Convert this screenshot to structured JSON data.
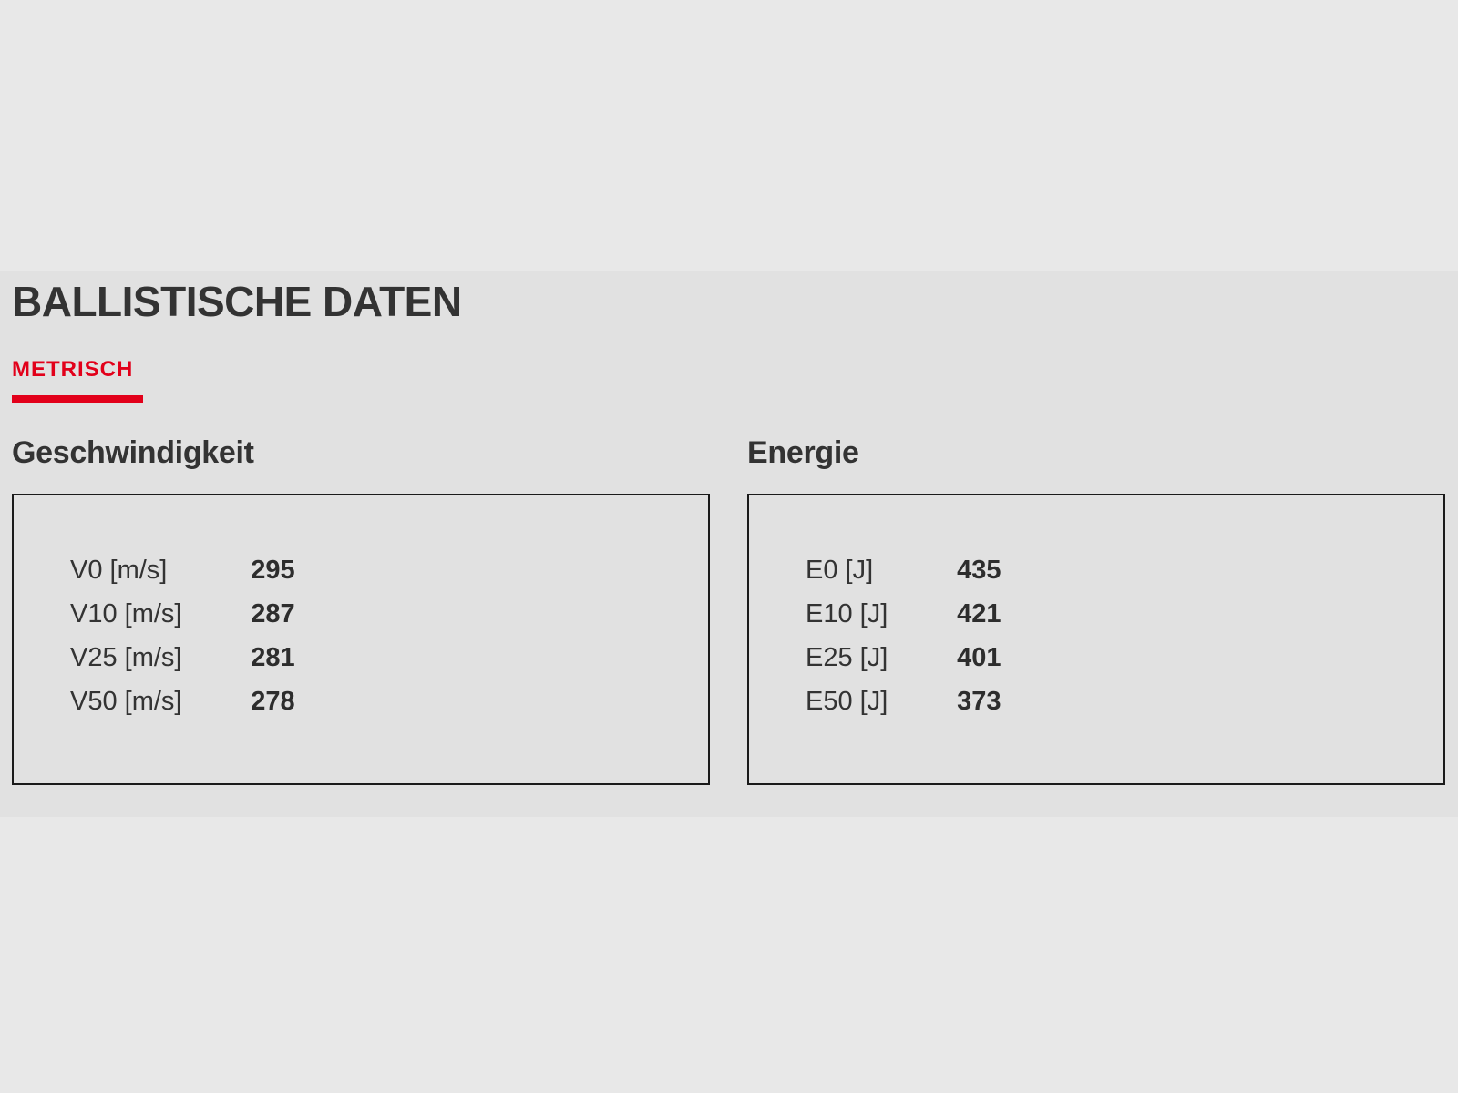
{
  "colors": {
    "accent_red": "#e2001a",
    "section_background": "#e1e1e1",
    "page_background": "#e8e8e8",
    "box_border": "#1a1a1a"
  },
  "section": {
    "title": "BALLISTISCHE DATEN",
    "tab": {
      "label": "METRISCH"
    },
    "columns": [
      {
        "heading": "Geschwindigkeit",
        "rows": [
          {
            "label": "V0 [m/s]",
            "value": "295"
          },
          {
            "label": "V10 [m/s]",
            "value": "287"
          },
          {
            "label": "V25 [m/s]",
            "value": "281"
          },
          {
            "label": "V50 [m/s]",
            "value": "278"
          }
        ]
      },
      {
        "heading": "Energie",
        "rows": [
          {
            "label": "E0 [J]",
            "value": "435"
          },
          {
            "label": "E10 [J]",
            "value": "421"
          },
          {
            "label": "E25 [J]",
            "value": "401"
          },
          {
            "label": "E50 [J]",
            "value": "373"
          }
        ]
      }
    ]
  }
}
